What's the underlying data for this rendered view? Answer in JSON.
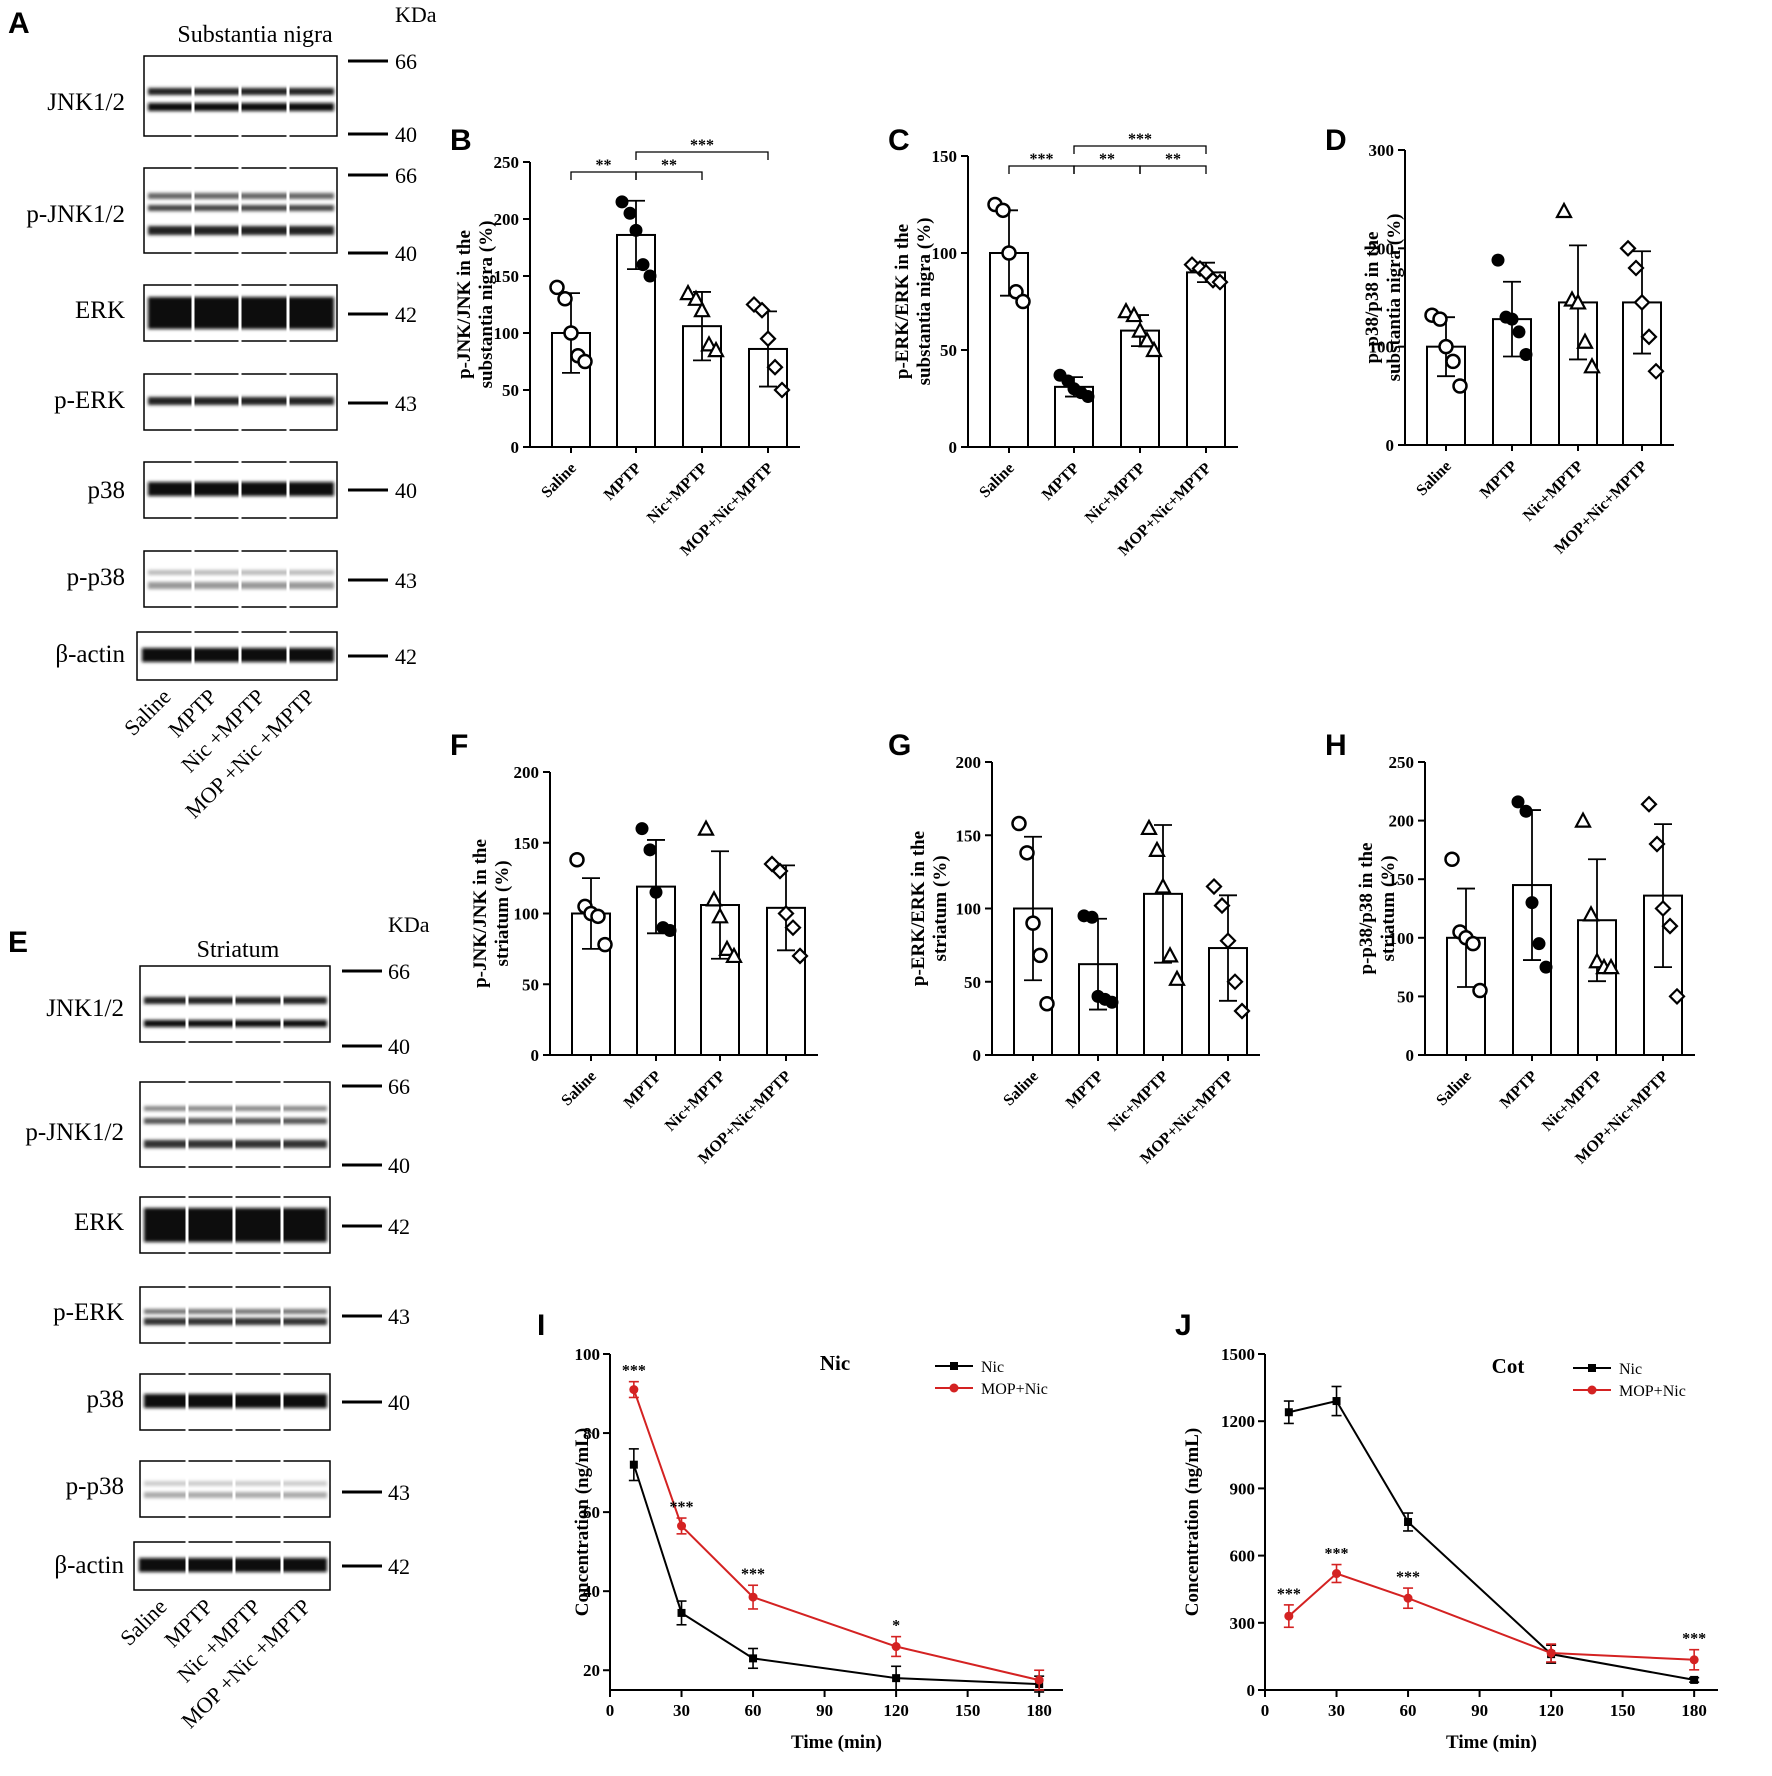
{
  "panel_letters": {
    "a": "A",
    "b": "B",
    "c": "C",
    "d": "D",
    "e": "E",
    "f": "F",
    "g": "G",
    "h": "H",
    "i": "I",
    "j": "J"
  },
  "blot_a": {
    "title": "Substantia nigra",
    "kda_label": "KDa",
    "rows": [
      {
        "name": "JNK1/2",
        "markers": [
          "66",
          "40"
        ]
      },
      {
        "name": "p-JNK1/2",
        "markers": [
          "66",
          "40"
        ]
      },
      {
        "name": "ERK",
        "markers": [
          "42"
        ]
      },
      {
        "name": "p-ERK",
        "markers": [
          "43"
        ]
      },
      {
        "name": "p38",
        "markers": [
          "40"
        ]
      },
      {
        "name": "p-p38",
        "markers": [
          "43"
        ]
      },
      {
        "name": "β-actin",
        "markers": [
          "42"
        ]
      }
    ],
    "lanes": [
      "Saline",
      "MPTP",
      "Nic +MPTP",
      "MOP +Nic +MPTP"
    ]
  },
  "blot_e": {
    "title": "Striatum",
    "kda_label": "KDa",
    "rows": [
      {
        "name": "JNK1/2",
        "markers": [
          "66",
          "40"
        ]
      },
      {
        "name": "p-JNK1/2",
        "markers": [
          "66",
          "40"
        ]
      },
      {
        "name": "ERK",
        "markers": [
          "42"
        ]
      },
      {
        "name": "p-ERK",
        "markers": [
          "43"
        ]
      },
      {
        "name": "p38",
        "markers": [
          "40"
        ]
      },
      {
        "name": "p-p38",
        "markers": [
          "43"
        ]
      },
      {
        "name": "β-actin",
        "markers": [
          "42"
        ]
      }
    ],
    "lanes": [
      "Saline",
      "MPTP",
      "Nic +MPTP",
      "MOP +Nic +MPTP"
    ]
  },
  "chart_data": [
    {
      "id": "B",
      "type": "bar",
      "categories": [
        "Saline",
        "MPTP",
        "Nic+MPTP",
        "MOP+Nic+MPTP"
      ],
      "ylabel": "p-JNK/JNK in the substantia nigra (%)",
      "ylim": [
        0,
        250
      ],
      "yticks": [
        0,
        50,
        100,
        150,
        200,
        250
      ],
      "values": [
        100,
        186,
        106,
        86
      ],
      "errors": [
        35,
        30,
        30,
        33
      ],
      "points": [
        [
          140,
          130,
          100,
          80,
          75
        ],
        [
          215,
          205,
          190,
          160,
          150
        ],
        [
          135,
          130,
          120,
          90,
          85
        ],
        [
          125,
          120,
          95,
          70,
          50
        ]
      ],
      "markers": [
        "circle-open",
        "circle-filled",
        "triangle-open",
        "diamond-open"
      ],
      "significance": [
        {
          "groups": [
            0,
            1
          ],
          "label": "**",
          "level": 1
        },
        {
          "groups": [
            1,
            2
          ],
          "label": "**",
          "level": 1
        },
        {
          "groups": [
            1,
            3
          ],
          "label": "***",
          "level": 2
        }
      ]
    },
    {
      "id": "C",
      "type": "bar",
      "categories": [
        "Saline",
        "MPTP",
        "Nic+MPTP",
        "MOP+Nic+MPTP"
      ],
      "ylabel": "p-ERK/ERK in the substantia nigra (%)",
      "ylim": [
        0,
        150
      ],
      "yticks": [
        0,
        50,
        100,
        150
      ],
      "values": [
        100,
        31,
        60,
        90
      ],
      "errors": [
        22,
        5,
        8,
        5
      ],
      "points": [
        [
          125,
          122,
          100,
          80,
          75
        ],
        [
          37,
          34,
          30,
          28,
          26
        ],
        [
          70,
          68,
          60,
          55,
          50
        ],
        [
          94,
          92,
          90,
          86,
          85
        ]
      ],
      "markers": [
        "circle-open",
        "circle-filled",
        "triangle-open",
        "diamond-open"
      ],
      "significance": [
        {
          "groups": [
            0,
            1
          ],
          "label": "***",
          "level": 1
        },
        {
          "groups": [
            1,
            2
          ],
          "label": "**",
          "level": 1
        },
        {
          "groups": [
            2,
            3
          ],
          "label": "**",
          "level": 1
        },
        {
          "groups": [
            1,
            3
          ],
          "label": "***",
          "level": 2
        }
      ]
    },
    {
      "id": "D",
      "type": "bar",
      "categories": [
        "Saline",
        "MPTP",
        "Nic+MPTP",
        "MOP+Nic+MPTP"
      ],
      "ylabel": "p-p38/p38 in the substantia nigra (%)",
      "ylim": [
        0,
        300
      ],
      "yticks": [
        0,
        100,
        200,
        300
      ],
      "values": [
        100,
        128,
        145,
        145
      ],
      "errors": [
        30,
        38,
        58,
        52
      ],
      "points": [
        [
          132,
          128,
          100,
          85,
          60
        ],
        [
          188,
          130,
          128,
          115,
          92
        ],
        [
          238,
          148,
          145,
          105,
          80
        ],
        [
          200,
          180,
          145,
          110,
          75
        ]
      ],
      "markers": [
        "circle-open",
        "circle-filled",
        "triangle-open",
        "diamond-open"
      ],
      "significance": []
    },
    {
      "id": "F",
      "type": "bar",
      "categories": [
        "Saline",
        "MPTP",
        "Nic+MPTP",
        "MOP+Nic+MPTP"
      ],
      "ylabel": "p-JNK/JNK in the striatum (%)",
      "ylim": [
        0,
        200
      ],
      "yticks": [
        0,
        50,
        100,
        150,
        200
      ],
      "values": [
        100,
        119,
        106,
        104
      ],
      "errors": [
        25,
        33,
        38,
        30
      ],
      "points": [
        [
          138,
          105,
          100,
          98,
          78
        ],
        [
          160,
          145,
          115,
          90,
          88
        ],
        [
          160,
          110,
          98,
          75,
          70
        ],
        [
          135,
          130,
          100,
          90,
          70
        ]
      ],
      "markers": [
        "circle-open",
        "circle-filled",
        "triangle-open",
        "diamond-open"
      ],
      "significance": []
    },
    {
      "id": "G",
      "type": "bar",
      "categories": [
        "Saline",
        "MPTP",
        "Nic+MPTP",
        "MOP+Nic+MPTP"
      ],
      "ylabel": "p-ERK/ERK in the striatum (%)",
      "ylim": [
        0,
        200
      ],
      "yticks": [
        0,
        50,
        100,
        150,
        200
      ],
      "values": [
        100,
        62,
        110,
        73
      ],
      "errors": [
        49,
        31,
        47,
        36
      ],
      "points": [
        [
          158,
          138,
          90,
          68,
          35
        ],
        [
          95,
          94,
          40,
          38,
          36
        ],
        [
          155,
          140,
          115,
          68,
          52
        ],
        [
          115,
          102,
          78,
          50,
          30
        ]
      ],
      "markers": [
        "circle-open",
        "circle-filled",
        "triangle-open",
        "diamond-open"
      ],
      "significance": []
    },
    {
      "id": "H",
      "type": "bar",
      "categories": [
        "Saline",
        "MPTP",
        "Nic+MPTP",
        "MOP+Nic+MPTP"
      ],
      "ylabel": "p-p38/p38 in the striatum (%)",
      "ylim": [
        0,
        250
      ],
      "yticks": [
        0,
        50,
        100,
        150,
        200,
        250
      ],
      "values": [
        100,
        145,
        115,
        136
      ],
      "errors": [
        42,
        64,
        52,
        61
      ],
      "points": [
        [
          167,
          105,
          100,
          95,
          55
        ],
        [
          216,
          208,
          130,
          95,
          75
        ],
        [
          200,
          120,
          80,
          75,
          75
        ],
        [
          214,
          180,
          125,
          110,
          50
        ]
      ],
      "markers": [
        "circle-open",
        "circle-filled",
        "triangle-open",
        "diamond-open"
      ],
      "significance": []
    },
    {
      "id": "I",
      "type": "line",
      "title": "Nic",
      "xlabel": "Time (min)",
      "ylabel": "Concentration (ng/mL)",
      "xlim": [
        0,
        190
      ],
      "xticks": [
        0,
        30,
        60,
        90,
        120,
        150,
        180
      ],
      "ylim": [
        15,
        100
      ],
      "yticks": [
        20,
        40,
        60,
        80,
        100
      ],
      "x": [
        10,
        30,
        60,
        120,
        180
      ],
      "series": [
        {
          "name": "Nic",
          "color": "#000000",
          "marker": "square",
          "values": [
            72,
            34.5,
            23,
            18,
            16.5
          ],
          "errors": [
            4,
            3,
            2.5,
            3,
            2
          ]
        },
        {
          "name": "MOP+Nic",
          "color": "#d42222",
          "marker": "circle",
          "values": [
            91,
            56.5,
            38.5,
            26,
            17.5
          ],
          "errors": [
            2,
            2,
            3,
            2.5,
            2.5
          ]
        }
      ],
      "annotations": [
        {
          "x": 10,
          "label": "***"
        },
        {
          "x": 30,
          "label": "***"
        },
        {
          "x": 60,
          "label": "***"
        },
        {
          "x": 120,
          "label": "*"
        }
      ]
    },
    {
      "id": "J",
      "type": "line",
      "title": "Cot",
      "xlabel": "Time (min)",
      "ylabel": "Concentration (ng/mL)",
      "xlim": [
        0,
        190
      ],
      "xticks": [
        0,
        30,
        60,
        90,
        120,
        150,
        180
      ],
      "ylim": [
        0,
        1500
      ],
      "yticks": [
        0,
        300,
        600,
        900,
        1200,
        1500
      ],
      "x": [
        10,
        30,
        60,
        120,
        180
      ],
      "series": [
        {
          "name": "Nic",
          "color": "#000000",
          "marker": "square",
          "values": [
            1240,
            1290,
            750,
            160,
            45
          ],
          "errors": [
            50,
            65,
            40,
            40,
            10
          ]
        },
        {
          "name": "MOP+Nic",
          "color": "#d42222",
          "marker": "circle",
          "values": [
            330,
            520,
            410,
            165,
            135
          ],
          "errors": [
            50,
            40,
            45,
            40,
            45
          ]
        }
      ],
      "annotations": [
        {
          "x": 10,
          "label": "***"
        },
        {
          "x": 30,
          "label": "***"
        },
        {
          "x": 60,
          "label": "***"
        },
        {
          "x": 180,
          "label": "***"
        }
      ]
    }
  ]
}
